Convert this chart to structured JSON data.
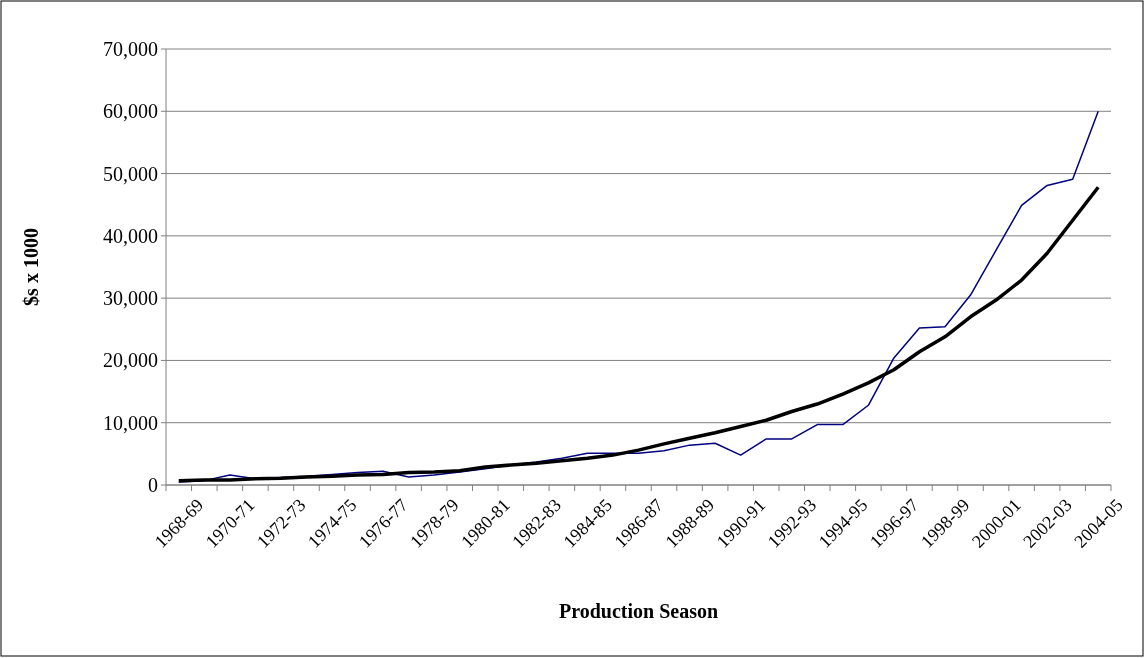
{
  "chart_data": {
    "type": "line",
    "xlabel": "Production Season",
    "ylabel": "$s x 1000",
    "categories": [
      "1968-69",
      null,
      "1970-71",
      null,
      "1972-73",
      null,
      "1974-75",
      null,
      "1976-77",
      null,
      "1978-79",
      null,
      "1980-81",
      null,
      "1982-83",
      null,
      "1984-85",
      null,
      "1986-87",
      null,
      "1988-89",
      null,
      "1990-91",
      null,
      "1992-93",
      null,
      "1994-95",
      null,
      "1996-97",
      null,
      "1998-99",
      null,
      "2000-01",
      null,
      "2002-03",
      null,
      "2004-05"
    ],
    "series": [
      {
        "color": "#000080",
        "values": [
          500,
          700,
          1600,
          1000,
          1200,
          1400,
          1700,
          2000,
          2200,
          1300,
          1600,
          2100,
          2600,
          3200,
          3700,
          4300,
          5100,
          5100,
          5100,
          5500,
          6400,
          6700,
          4800,
          7400,
          7400,
          9700,
          9700,
          12800,
          20400,
          25200,
          25400,
          30500,
          37700,
          44900,
          48100,
          49100,
          60000
        ]
      },
      {
        "color": "#000000",
        "values": [
          700,
          800,
          800,
          1000,
          1100,
          1300,
          1400,
          1600,
          1700,
          2000,
          2100,
          2300,
          2900,
          3200,
          3500,
          3900,
          4300,
          4800,
          5600,
          6600,
          7500,
          8400,
          9400,
          10400,
          11800,
          13000,
          14600,
          16400,
          18500,
          21400,
          23800,
          27000,
          29700,
          32900,
          37200,
          42500,
          47800
        ]
      }
    ],
    "ylim": [
      0,
      70000
    ],
    "yticks": [
      {
        "value": 0,
        "label": "0"
      },
      {
        "value": 10000,
        "label": "10,000"
      },
      {
        "value": 20000,
        "label": "20,000"
      },
      {
        "value": 30000,
        "label": "30,000"
      },
      {
        "value": 40000,
        "label": "40,000"
      },
      {
        "value": 50000,
        "label": "50,000"
      },
      {
        "value": 60000,
        "label": "60,000"
      },
      {
        "value": 70000,
        "label": "70,000"
      }
    ],
    "grid": "y",
    "marker": "none",
    "line_style": "solid"
  }
}
